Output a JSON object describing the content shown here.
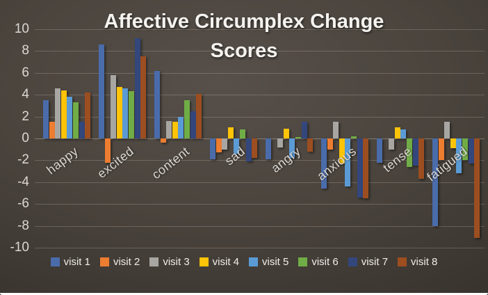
{
  "title": {
    "line1": "Affective Circumplex Change",
    "line2": "Scores"
  },
  "chart_data": {
    "type": "bar",
    "title": "Affective Circumplex Change Scores",
    "categories": [
      "happy",
      "excited",
      "content",
      "sad",
      "angry",
      "anxious",
      "tense",
      "fatigued"
    ],
    "series": [
      {
        "name": "visit 1",
        "color": "#4a6cab",
        "values": [
          3.5,
          8.6,
          6.2,
          -1.9,
          -1.9,
          -4.6,
          -2.2,
          -8.0
        ]
      },
      {
        "name": "visit 2",
        "color": "#ed7d31",
        "values": [
          1.5,
          -2.2,
          -0.4,
          -1.3,
          0,
          -1.0,
          0,
          -2.0
        ]
      },
      {
        "name": "visit 3",
        "color": "#a8a6a3",
        "values": [
          4.6,
          5.8,
          1.6,
          -1.0,
          -0.8,
          1.5,
          -1.0,
          1.5
        ]
      },
      {
        "name": "visit 4",
        "color": "#fdc408",
        "values": [
          4.4,
          4.7,
          1.5,
          1.0,
          0.9,
          -2.3,
          1.0,
          -0.9
        ]
      },
      {
        "name": "visit 5",
        "color": "#5b9bd5",
        "values": [
          3.8,
          4.6,
          2.0,
          -1.4,
          -1.8,
          -4.4,
          0.8,
          -3.2
        ]
      },
      {
        "name": "visit 6",
        "color": "#70ad47",
        "values": [
          3.3,
          4.3,
          3.5,
          0.8,
          0.15,
          0.2,
          -2.6,
          -2.0
        ]
      },
      {
        "name": "visit 7",
        "color": "#33477d",
        "values": [
          1.5,
          9.2,
          2.5,
          -2.1,
          1.5,
          -5.4,
          -2.5,
          -2.3
        ]
      },
      {
        "name": "visit 8",
        "color": "#9c4e20",
        "values": [
          4.2,
          7.5,
          4.1,
          -1.8,
          -1.2,
          -5.5,
          -3.7,
          -9.1
        ]
      }
    ],
    "ylim": [
      -10,
      10
    ],
    "yticks": [
      10,
      8,
      6,
      4,
      2,
      0,
      -2,
      -4,
      -6,
      -8,
      -10
    ],
    "grid": true,
    "legend_position": "bottom",
    "background": "#47413a",
    "text_color": "#dcd8d2"
  }
}
